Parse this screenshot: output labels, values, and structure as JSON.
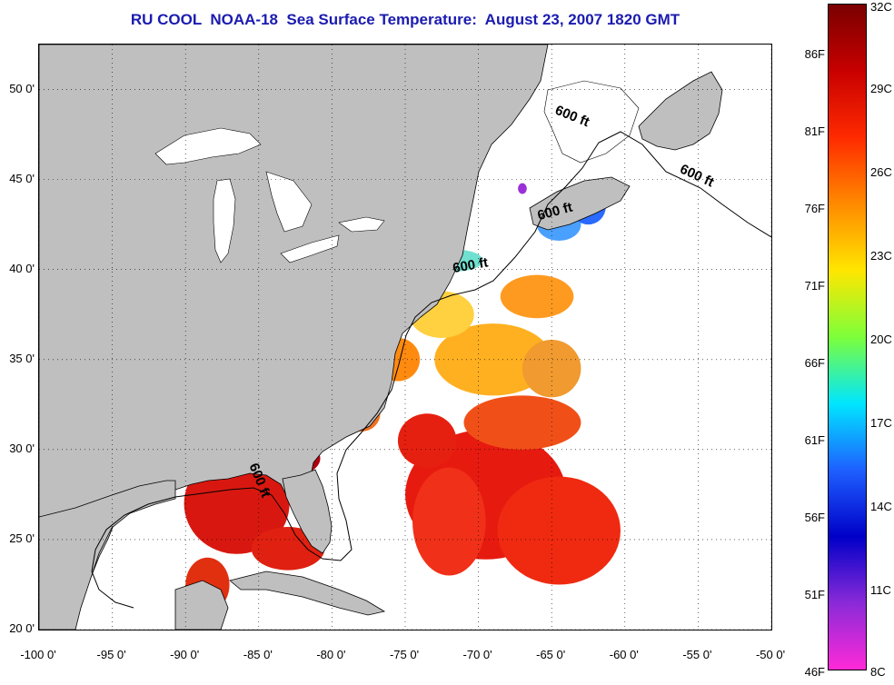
{
  "title": "RU COOL  NOAA-18  Sea Surface Temperature:  August 23, 2007 1820 GMT",
  "map": {
    "lon_range": [
      -100,
      -50
    ],
    "lat_range": [
      20,
      52.5
    ],
    "lat_ticks": [
      {
        "value": 20,
        "label": "20 0'"
      },
      {
        "value": 25,
        "label": "25 0'"
      },
      {
        "value": 30,
        "label": "30 0'"
      },
      {
        "value": 35,
        "label": "35 0'"
      },
      {
        "value": 40,
        "label": "40 0'"
      },
      {
        "value": 45,
        "label": "45 0'"
      },
      {
        "value": 50,
        "label": "50 0'"
      }
    ],
    "lon_ticks": [
      {
        "value": -100,
        "label": "-100 0'"
      },
      {
        "value": -95,
        "label": "-95 0'"
      },
      {
        "value": -90,
        "label": "-90 0'"
      },
      {
        "value": -85,
        "label": "-85 0'"
      },
      {
        "value": -80,
        "label": "-80 0'"
      },
      {
        "value": -75,
        "label": "-75 0'"
      },
      {
        "value": -70,
        "label": "-70 0'"
      },
      {
        "value": -65,
        "label": "-65 0'"
      },
      {
        "value": -60,
        "label": "-60 0'"
      },
      {
        "value": -55,
        "label": "-55 0'"
      },
      {
        "value": -50,
        "label": "-50 0'"
      }
    ],
    "grid": "dotted",
    "land_color": "#bfbfbf",
    "ocean_color": "#ffffff",
    "contour_labels": [
      {
        "text": "600 ft",
        "lon": -63.7,
        "lat": 48.3,
        "angle": 22
      },
      {
        "text": "600 ft",
        "lon": -55.2,
        "lat": 45.0,
        "angle": 25
      },
      {
        "text": "600 ft",
        "lon": -64.7,
        "lat": 43.0,
        "angle": -15
      },
      {
        "text": "600 ft",
        "lon": -70.5,
        "lat": 40.0,
        "angle": -10
      },
      {
        "text": "600 ft",
        "lon": -85.2,
        "lat": 28.2,
        "angle": 68
      }
    ]
  },
  "colorbar": {
    "fahrenheit_labels": [
      "86F",
      "81F",
      "76F",
      "71F",
      "66F",
      "61F",
      "56F",
      "51F",
      "46F"
    ],
    "celsius_labels": [
      "32C",
      "29C",
      "26C",
      "23C",
      "20C",
      "17C",
      "14C",
      "11C",
      "8C"
    ],
    "stops": [
      "#7a0000",
      "#c80000",
      "#ff2a00",
      "#ff8a00",
      "#ffe600",
      "#7dff3a",
      "#00e6ff",
      "#1e60ff",
      "#0000c8",
      "#8a2ad8",
      "#ff2ad8"
    ]
  },
  "sst_patches": [
    {
      "lon": -69.5,
      "lat": 27.5,
      "rx": 5.5,
      "ry": 3.6,
      "color": "#e71a10"
    },
    {
      "lon": -64.5,
      "lat": 25.5,
      "rx": 4.2,
      "ry": 3.0,
      "color": "#ef2a10"
    },
    {
      "lon": -72.0,
      "lat": 26.0,
      "rx": 2.5,
      "ry": 3.0,
      "color": "#f03018"
    },
    {
      "lon": -67.0,
      "lat": 31.5,
      "rx": 4.0,
      "ry": 1.5,
      "color": "#f05018"
    },
    {
      "lon": -73.5,
      "lat": 30.5,
      "rx": 2.0,
      "ry": 1.5,
      "color": "#e62010"
    },
    {
      "lon": -86.5,
      "lat": 27.0,
      "rx": 3.6,
      "ry": 2.8,
      "color": "#d81810"
    },
    {
      "lon": -83.0,
      "lat": 29.5,
      "rx": 2.2,
      "ry": 1.0,
      "color": "#b00010"
    },
    {
      "lon": -83.0,
      "lat": 24.5,
      "rx": 2.5,
      "ry": 1.2,
      "color": "#e02010"
    },
    {
      "lon": -88.5,
      "lat": 22.5,
      "rx": 1.5,
      "ry": 1.5,
      "color": "#e03010"
    },
    {
      "lon": -78.0,
      "lat": 32.0,
      "rx": 1.3,
      "ry": 1.0,
      "color": "#f07020"
    },
    {
      "lon": -75.5,
      "lat": 35.0,
      "rx": 1.5,
      "ry": 1.2,
      "color": "#ff8a10"
    },
    {
      "lon": -69.0,
      "lat": 35.0,
      "rx": 4.0,
      "ry": 2.0,
      "color": "#ffb020"
    },
    {
      "lon": -65.0,
      "lat": 34.5,
      "rx": 2.0,
      "ry": 1.6,
      "color": "#f09a30"
    },
    {
      "lon": -72.5,
      "lat": 37.5,
      "rx": 2.2,
      "ry": 1.3,
      "color": "#ffd040"
    },
    {
      "lon": -66.0,
      "lat": 38.5,
      "rx": 2.5,
      "ry": 1.2,
      "color": "#ff9a20"
    },
    {
      "lon": -71.5,
      "lat": 40.5,
      "rx": 1.8,
      "ry": 0.6,
      "color": "#70e0d0"
    },
    {
      "lon": -64.5,
      "lat": 42.5,
      "rx": 1.5,
      "ry": 0.9,
      "color": "#4aa0ff"
    },
    {
      "lon": -62.5,
      "lat": 43.5,
      "rx": 1.2,
      "ry": 1.0,
      "color": "#2a6aff"
    },
    {
      "lon": -67.0,
      "lat": 44.5,
      "rx": 0.3,
      "ry": 0.3,
      "color": "#9a30d8"
    },
    {
      "lon": -87.2,
      "lat": 42.5,
      "rx": 0.5,
      "ry": 1.2,
      "color": "#f0e040"
    },
    {
      "lon": -82.0,
      "lat": 45.0,
      "rx": 0.7,
      "ry": 0.8,
      "color": "#60e0c0"
    },
    {
      "lon": -81.0,
      "lat": 42.0,
      "rx": 1.0,
      "ry": 0.3,
      "color": "#b0ff60"
    }
  ]
}
